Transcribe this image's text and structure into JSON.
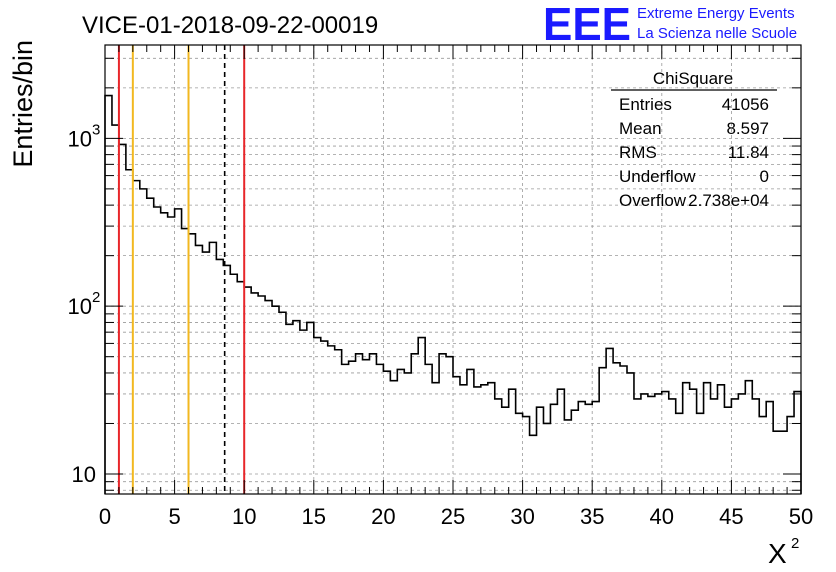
{
  "chart_data": {
    "type": "histogram",
    "title": "VICE-01-2018-09-22-00019",
    "xlabel": "X",
    "xlabel_superscript": "2",
    "ylabel": "Entries/bin",
    "y_scale": "log",
    "xlim": [
      0,
      50
    ],
    "ylim": [
      7.6,
      3600
    ],
    "x_ticks": [
      0,
      5,
      10,
      15,
      20,
      25,
      30,
      35,
      40,
      45,
      50
    ],
    "y_ticks": [
      {
        "value": 10,
        "base": "10",
        "exp": ""
      },
      {
        "value": 100,
        "base": "10",
        "exp": "2"
      },
      {
        "value": 1000,
        "base": "10",
        "exp": "3"
      }
    ],
    "grid": true,
    "bin_width": 0.5,
    "values": [
      1800,
      1200,
      920,
      650,
      560,
      500,
      440,
      390,
      360,
      340,
      380,
      290,
      270,
      230,
      210,
      240,
      190,
      175,
      155,
      140,
      130,
      120,
      115,
      108,
      100,
      92,
      78,
      82,
      72,
      80,
      65,
      62,
      58,
      55,
      45,
      47,
      52,
      48,
      52,
      45,
      41,
      36,
      42,
      40,
      52,
      65,
      45,
      35,
      52,
      50,
      38,
      34,
      42,
      33,
      34,
      35,
      28,
      25,
      32,
      23,
      22,
      17,
      25,
      20,
      26,
      32,
      21,
      24,
      27,
      26,
      27,
      43,
      56,
      46,
      44,
      40,
      28,
      30,
      29,
      30,
      31,
      28,
      23,
      35,
      32,
      23,
      35,
      28,
      34,
      25,
      28,
      30,
      36,
      28,
      22,
      27,
      18,
      18,
      22,
      31
    ],
    "vertical_lines": [
      {
        "name": "red-line-1",
        "x": 1,
        "color": "#e8262a",
        "style": "solid"
      },
      {
        "name": "yellow-line-2",
        "x": 2,
        "color": "#f2b820",
        "style": "solid"
      },
      {
        "name": "yellow-line-6",
        "x": 6,
        "color": "#f2b820",
        "style": "solid"
      },
      {
        "name": "mean-dashed-line",
        "x": 8.597,
        "color": "#000000",
        "style": "dashed"
      },
      {
        "name": "red-line-10",
        "x": 10,
        "color": "#e8262a",
        "style": "solid"
      }
    ],
    "stats_box": {
      "title": "ChiSquare",
      "rows": [
        {
          "label": "Entries",
          "value": "41056"
        },
        {
          "label": "Mean",
          "value": "8.597"
        },
        {
          "label": "RMS",
          "value": "11.84"
        },
        {
          "label": "Underflow",
          "value": "0"
        },
        {
          "label": "Overflow",
          "value": "2.738e+04"
        }
      ]
    }
  },
  "logo": {
    "letters": "EEE",
    "line1": "Extreme Energy Events",
    "line2": "La Scienza nelle Scuole",
    "color": "#1a1aff"
  }
}
